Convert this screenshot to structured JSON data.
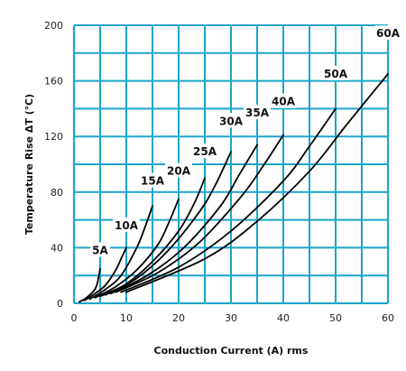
{
  "chart_data": {
    "type": "line",
    "xlabel": "Conduction Current (A) rms",
    "ylabel": "Temperature Rise ΔT (℃)",
    "xlim": [
      0,
      60
    ],
    "ylim": [
      0,
      200
    ],
    "x_ticks": [
      0,
      10,
      20,
      30,
      40,
      50,
      60
    ],
    "y_ticks": [
      0,
      40,
      80,
      120,
      160,
      200
    ],
    "grid": true,
    "grid_color": "#1aa6c9",
    "line_color": "#000000",
    "series": [
      {
        "name": "5A",
        "points": [
          [
            1,
            1
          ],
          [
            2,
            3
          ],
          [
            3,
            6
          ],
          [
            4,
            10
          ],
          [
            4.5,
            15
          ],
          [
            5,
            25
          ]
        ]
      },
      {
        "name": "10A",
        "points": [
          [
            2,
            2
          ],
          [
            4,
            7
          ],
          [
            6,
            13
          ],
          [
            8,
            24
          ],
          [
            9,
            32
          ],
          [
            10,
            40
          ]
        ]
      },
      {
        "name": "15A",
        "points": [
          [
            3,
            3
          ],
          [
            6,
            10
          ],
          [
            9,
            20
          ],
          [
            12,
            40
          ],
          [
            13.5,
            54
          ],
          [
            15,
            70
          ]
        ]
      },
      {
        "name": "20A",
        "points": [
          [
            4,
            4
          ],
          [
            8,
            12
          ],
          [
            12,
            24
          ],
          [
            16,
            42
          ],
          [
            18,
            57
          ],
          [
            20,
            75
          ]
        ]
      },
      {
        "name": "25A",
        "points": [
          [
            5,
            5
          ],
          [
            10,
            14
          ],
          [
            15,
            30
          ],
          [
            20,
            52
          ],
          [
            23,
            72
          ],
          [
            25,
            90
          ]
        ]
      },
      {
        "name": "30A",
        "points": [
          [
            6,
            6
          ],
          [
            12,
            18
          ],
          [
            18,
            38
          ],
          [
            24,
            66
          ],
          [
            27,
            85
          ],
          [
            30,
            109
          ]
        ]
      },
      {
        "name": "35A",
        "points": [
          [
            7,
            7
          ],
          [
            14,
            20
          ],
          [
            21,
            40
          ],
          [
            28,
            70
          ],
          [
            31.5,
            92
          ],
          [
            35,
            114
          ]
        ]
      },
      {
        "name": "40A",
        "points": [
          [
            8,
            8
          ],
          [
            16,
            22
          ],
          [
            24,
            44
          ],
          [
            32,
            77
          ],
          [
            36,
            98
          ],
          [
            40,
            121
          ]
        ]
      },
      {
        "name": "50A",
        "points": [
          [
            9,
            8
          ],
          [
            20,
            26
          ],
          [
            30,
            52
          ],
          [
            40,
            88
          ],
          [
            45,
            113
          ],
          [
            50,
            140
          ]
        ]
      },
      {
        "name": "60A",
        "points": [
          [
            10,
            8
          ],
          [
            25,
            32
          ],
          [
            35,
            59
          ],
          [
            45,
            95
          ],
          [
            52,
            128
          ],
          [
            60,
            165
          ]
        ]
      }
    ],
    "series_label_positions": [
      {
        "name": "5A",
        "x": 5,
        "y": 38
      },
      {
        "name": "10A",
        "x": 10,
        "y": 56
      },
      {
        "name": "15A",
        "x": 15,
        "y": 88
      },
      {
        "name": "20A",
        "x": 20,
        "y": 95
      },
      {
        "name": "25A",
        "x": 25,
        "y": 109
      },
      {
        "name": "30A",
        "x": 30,
        "y": 131
      },
      {
        "name": "35A",
        "x": 35,
        "y": 137
      },
      {
        "name": "40A",
        "x": 40,
        "y": 145
      },
      {
        "name": "50A",
        "x": 50,
        "y": 165
      },
      {
        "name": "60A",
        "x": 60,
        "y": 194
      }
    ]
  }
}
